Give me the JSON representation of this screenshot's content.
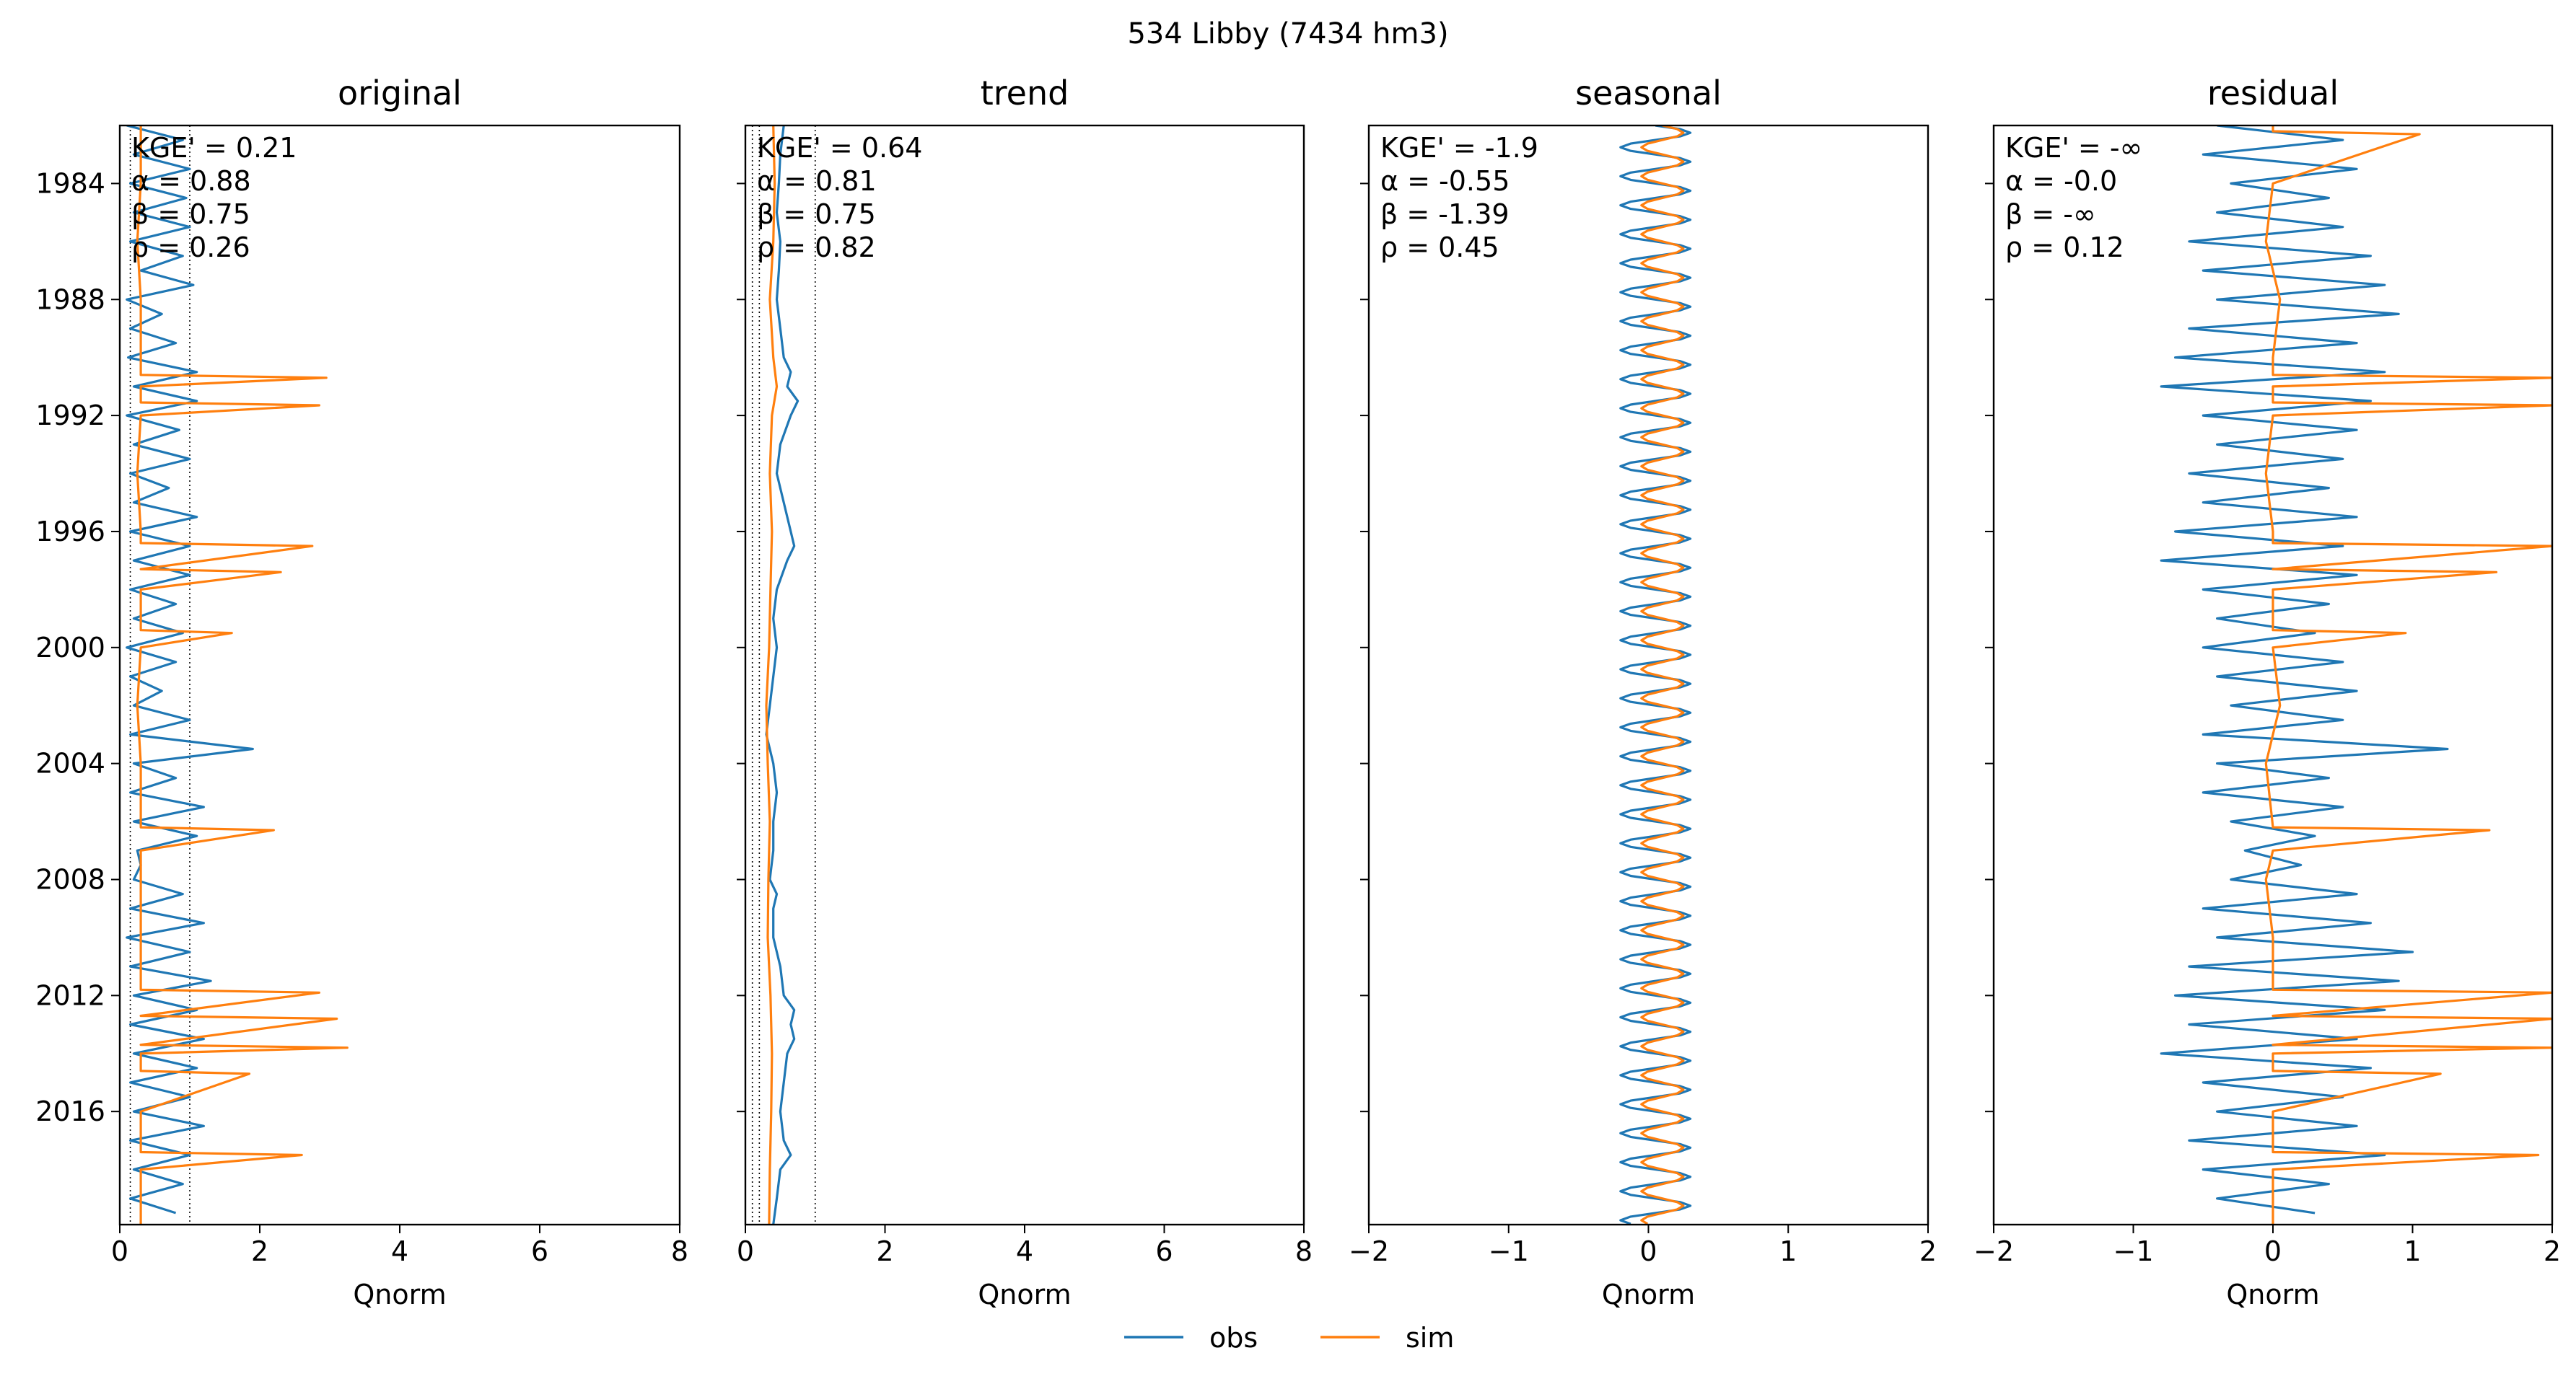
{
  "figure": {
    "suptitle": "534  Libby (7434 hm3)",
    "legend": {
      "placement": "bottom-center",
      "entries": [
        {
          "label": "obs",
          "color": "#1f77b4"
        },
        {
          "label": "sim",
          "color": "#ff7f0e"
        }
      ]
    }
  },
  "chart_data": [
    {
      "type": "line",
      "title": "original",
      "xlabel": "Qnorm",
      "ylabel": "",
      "orientation": "horizontal-time",
      "xlim": [
        0,
        8
      ],
      "xticks": [
        0,
        2,
        4,
        6,
        8
      ],
      "xtick_labels": [
        "0",
        "2",
        "4",
        "6",
        "8"
      ],
      "ylim": [
        1982.0,
        2019.9
      ],
      "yticks": [
        1984,
        1988,
        1992,
        1996,
        2000,
        2004,
        2008,
        2012,
        2016
      ],
      "ytick_labels": [
        "1984",
        "1988",
        "1992",
        "1996",
        "2000",
        "2004",
        "2008",
        "2012",
        "2016"
      ],
      "vlines": [
        0.15,
        1.0
      ],
      "metrics": [
        "KGE' = 0.21",
        "α = 0.88",
        "β = 0.75",
        "ρ = 0.26"
      ],
      "series": [
        {
          "name": "obs",
          "color": "#1f77b4",
          "time": [
            1982.0,
            1982.5,
            1983.0,
            1983.5,
            1984.0,
            1984.5,
            1985.0,
            1985.5,
            1986.0,
            1986.5,
            1987.0,
            1987.5,
            1988.0,
            1988.5,
            1989.0,
            1989.5,
            1990.0,
            1990.5,
            1991.0,
            1991.5,
            1992.0,
            1992.5,
            1993.0,
            1993.5,
            1994.0,
            1994.5,
            1995.0,
            1995.5,
            1996.0,
            1996.5,
            1997.0,
            1997.5,
            1998.0,
            1998.5,
            1999.0,
            1999.5,
            2000.0,
            2000.5,
            2001.0,
            2001.5,
            2002.0,
            2002.5,
            2003.0,
            2003.5,
            2004.0,
            2004.5,
            2005.0,
            2005.5,
            2006.0,
            2006.5,
            2007.0,
            2007.5,
            2008.0,
            2008.5,
            2009.0,
            2009.5,
            2010.0,
            2010.5,
            2011.0,
            2011.5,
            2012.0,
            2012.5,
            2013.0,
            2013.5,
            2014.0,
            2014.5,
            2015.0,
            2015.5,
            2016.0,
            2016.5,
            2017.0,
            2017.5,
            2018.0,
            2018.5,
            2019.0,
            2019.5
          ],
          "values": [
            0.1,
            0.9,
            0.2,
            1.0,
            0.15,
            0.95,
            0.2,
            1.0,
            0.15,
            0.9,
            0.3,
            1.05,
            0.1,
            0.6,
            0.15,
            0.8,
            0.12,
            1.1,
            0.2,
            1.1,
            0.1,
            0.85,
            0.2,
            1.0,
            0.15,
            0.7,
            0.2,
            1.1,
            0.15,
            1.0,
            0.2,
            1.0,
            0.15,
            0.8,
            0.2,
            0.9,
            0.1,
            0.8,
            0.15,
            0.6,
            0.2,
            1.0,
            0.15,
            1.9,
            0.2,
            0.8,
            0.15,
            1.2,
            0.2,
            1.1,
            0.25,
            0.3,
            0.2,
            0.9,
            0.15,
            1.2,
            0.1,
            1.0,
            0.15,
            1.3,
            0.2,
            1.1,
            0.15,
            1.2,
            0.2,
            1.1,
            0.15,
            1.0,
            0.2,
            1.2,
            0.15,
            1.0,
            0.2,
            0.9,
            0.15,
            0.8
          ]
        },
        {
          "name": "sim",
          "color": "#ff7f0e",
          "time": [
            1982.0,
            1984.0,
            1986.0,
            1988.0,
            1990.0,
            1990.6,
            1990.7,
            1991.0,
            1991.55,
            1991.65,
            1992.0,
            1994.0,
            1996.0,
            1996.4,
            1996.5,
            1997.3,
            1997.4,
            1998.0,
            1999.4,
            1999.5,
            2000.0,
            2002.0,
            2004.0,
            2006.2,
            2006.3,
            2007.0,
            2008.0,
            2010.0,
            2011.8,
            2011.9,
            2012.7,
            2012.8,
            2013.7,
            2013.8,
            2014.0,
            2014.6,
            2014.7,
            2016.0,
            2017.4,
            2017.5,
            2018.0,
            2019.9
          ],
          "values": [
            0.3,
            0.3,
            0.25,
            0.3,
            0.3,
            0.3,
            2.95,
            0.3,
            0.3,
            2.85,
            0.3,
            0.25,
            0.3,
            0.3,
            2.75,
            0.3,
            2.3,
            0.3,
            0.3,
            1.6,
            0.3,
            0.25,
            0.3,
            0.3,
            2.2,
            0.3,
            0.3,
            0.3,
            0.3,
            2.85,
            0.3,
            3.1,
            0.3,
            3.25,
            0.3,
            0.3,
            1.85,
            0.3,
            0.3,
            2.6,
            0.3,
            0.3
          ]
        }
      ]
    },
    {
      "type": "line",
      "title": "trend",
      "xlabel": "Qnorm",
      "ylabel": "",
      "orientation": "horizontal-time",
      "xlim": [
        0,
        8
      ],
      "xticks": [
        0,
        2,
        4,
        6,
        8
      ],
      "xtick_labels": [
        "0",
        "2",
        "4",
        "6",
        "8"
      ],
      "ylim": [
        1982.0,
        2019.9
      ],
      "yticks": [
        1984,
        1988,
        1992,
        1996,
        2000,
        2004,
        2008,
        2012,
        2016
      ],
      "vlines": [
        0.1,
        0.2,
        1.0
      ],
      "metrics": [
        "KGE' = 0.64",
        "α = 0.81",
        "β = 0.75",
        "ρ = 0.82"
      ],
      "series": [
        {
          "name": "obs",
          "color": "#1f77b4",
          "time": [
            1982.0,
            1983.0,
            1984.0,
            1985.0,
            1986.0,
            1987.0,
            1988.0,
            1989.0,
            1990.0,
            1990.5,
            1991.0,
            1991.5,
            1992.0,
            1993.0,
            1994.0,
            1995.0,
            1996.0,
            1996.5,
            1997.0,
            1998.0,
            1999.0,
            2000.0,
            2001.0,
            2002.0,
            2003.0,
            2004.0,
            2005.0,
            2006.0,
            2007.0,
            2008.0,
            2008.5,
            2009.0,
            2010.0,
            2011.0,
            2012.0,
            2012.5,
            2013.0,
            2013.5,
            2014.0,
            2015.0,
            2016.0,
            2017.0,
            2017.5,
            2018.0,
            2019.0,
            2019.9
          ],
          "values": [
            0.55,
            0.5,
            0.48,
            0.45,
            0.5,
            0.48,
            0.45,
            0.5,
            0.55,
            0.65,
            0.6,
            0.75,
            0.65,
            0.5,
            0.45,
            0.55,
            0.65,
            0.7,
            0.6,
            0.45,
            0.4,
            0.45,
            0.4,
            0.35,
            0.3,
            0.4,
            0.45,
            0.4,
            0.4,
            0.35,
            0.45,
            0.4,
            0.4,
            0.5,
            0.55,
            0.7,
            0.65,
            0.7,
            0.6,
            0.55,
            0.5,
            0.55,
            0.65,
            0.5,
            0.45,
            0.4
          ]
        },
        {
          "name": "sim",
          "color": "#ff7f0e",
          "time": [
            1982.0,
            1984.0,
            1986.0,
            1988.0,
            1990.0,
            1991.0,
            1992.0,
            1994.0,
            1996.0,
            1998.0,
            2000.0,
            2002.0,
            2004.0,
            2006.0,
            2008.0,
            2010.0,
            2012.0,
            2014.0,
            2016.0,
            2018.0,
            2019.9
          ],
          "values": [
            0.4,
            0.42,
            0.4,
            0.35,
            0.4,
            0.45,
            0.38,
            0.35,
            0.38,
            0.36,
            0.34,
            0.3,
            0.32,
            0.35,
            0.33,
            0.32,
            0.36,
            0.38,
            0.37,
            0.35,
            0.34
          ]
        }
      ]
    },
    {
      "type": "line",
      "title": "seasonal",
      "xlabel": "Qnorm",
      "ylabel": "",
      "orientation": "horizontal-time",
      "xlim": [
        -2,
        2
      ],
      "xticks": [
        -2,
        -1,
        0,
        1,
        2
      ],
      "xtick_labels": [
        "−2",
        "−1",
        "0",
        "1",
        "2"
      ],
      "ylim": [
        1982.0,
        2019.9
      ],
      "yticks": [
        1984,
        1988,
        1992,
        1996,
        2000,
        2004,
        2008,
        2012,
        2016
      ],
      "metrics": [
        "KGE' = -1.9",
        "α = -0.55",
        "β = -1.39",
        "ρ = 0.45"
      ],
      "series": [
        {
          "name": "obs",
          "color": "#1f77b4",
          "pattern": "annual-cycle",
          "period": 1.0,
          "low": -0.2,
          "high": 0.3,
          "start": 1982.0,
          "end": 2019.9
        },
        {
          "name": "sim",
          "color": "#ff7f0e",
          "pattern": "annual-cycle",
          "period": 1.0,
          "low": -0.05,
          "high": 0.25,
          "start": 1982.0,
          "end": 2019.9
        }
      ]
    },
    {
      "type": "line",
      "title": "residual",
      "xlabel": "Qnorm",
      "ylabel": "",
      "orientation": "horizontal-time",
      "xlim": [
        -2,
        2
      ],
      "xticks": [
        -2,
        -1,
        0,
        1,
        2
      ],
      "xtick_labels": [
        "−2",
        "−1",
        "0",
        "1",
        "2"
      ],
      "ylim": [
        1982.0,
        2019.9
      ],
      "yticks": [
        1984,
        1988,
        1992,
        1996,
        2000,
        2004,
        2008,
        2012,
        2016
      ],
      "metrics": [
        "KGE' = -∞",
        "α = -0.0",
        "β = -∞",
        "ρ = 0.12"
      ],
      "series": [
        {
          "name": "obs",
          "color": "#1f77b4",
          "time": [
            1982.0,
            1982.5,
            1983.0,
            1983.5,
            1984.0,
            1984.5,
            1985.0,
            1985.5,
            1986.0,
            1986.5,
            1987.0,
            1987.5,
            1988.0,
            1988.5,
            1989.0,
            1989.5,
            1990.0,
            1990.5,
            1991.0,
            1991.5,
            1992.0,
            1992.5,
            1993.0,
            1993.5,
            1994.0,
            1994.5,
            1995.0,
            1995.5,
            1996.0,
            1996.5,
            1997.0,
            1997.5,
            1998.0,
            1998.5,
            1999.0,
            1999.5,
            2000.0,
            2000.5,
            2001.0,
            2001.5,
            2002.0,
            2002.5,
            2003.0,
            2003.5,
            2004.0,
            2004.5,
            2005.0,
            2005.5,
            2006.0,
            2006.5,
            2007.0,
            2007.5,
            2008.0,
            2008.5,
            2009.0,
            2009.5,
            2010.0,
            2010.5,
            2011.0,
            2011.5,
            2012.0,
            2012.5,
            2013.0,
            2013.5,
            2014.0,
            2014.5,
            2015.0,
            2015.5,
            2016.0,
            2016.5,
            2017.0,
            2017.5,
            2018.0,
            2018.5,
            2019.0,
            2019.5
          ],
          "values": [
            -0.4,
            0.5,
            -0.5,
            0.6,
            -0.3,
            0.4,
            -0.4,
            0.5,
            -0.6,
            0.7,
            -0.5,
            0.8,
            -0.4,
            0.9,
            -0.6,
            0.6,
            -0.7,
            0.8,
            -0.8,
            0.7,
            -0.5,
            0.6,
            -0.4,
            0.5,
            -0.6,
            0.4,
            -0.5,
            0.6,
            -0.7,
            0.5,
            -0.8,
            0.6,
            -0.5,
            0.4,
            -0.4,
            0.3,
            -0.5,
            0.5,
            -0.4,
            0.6,
            -0.3,
            0.5,
            -0.5,
            1.25,
            -0.4,
            0.4,
            -0.5,
            0.5,
            -0.3,
            0.3,
            -0.2,
            0.2,
            -0.3,
            0.6,
            -0.5,
            0.7,
            -0.4,
            1.0,
            -0.6,
            0.9,
            -0.7,
            0.8,
            -0.6,
            0.6,
            -0.8,
            0.7,
            -0.5,
            0.5,
            -0.4,
            0.6,
            -0.6,
            0.8,
            -0.5,
            0.4,
            -0.4,
            0.3
          ]
        },
        {
          "name": "sim",
          "color": "#ff7f0e",
          "time": [
            1982.0,
            1982.2,
            1982.3,
            1984.0,
            1986.0,
            1988.0,
            1990.0,
            1990.6,
            1990.7,
            1991.0,
            1991.55,
            1991.65,
            1992.0,
            1994.0,
            1996.0,
            1996.4,
            1996.5,
            1997.3,
            1997.4,
            1998.0,
            1999.4,
            1999.5,
            2000.0,
            2002.0,
            2004.0,
            2006.2,
            2006.3,
            2007.0,
            2008.0,
            2010.0,
            2011.8,
            2011.9,
            2012.7,
            2012.8,
            2013.7,
            2013.8,
            2014.0,
            2014.6,
            2014.7,
            2016.0,
            2017.4,
            2017.5,
            2018.0,
            2019.9
          ],
          "values": [
            0.0,
            0.0,
            1.05,
            0.0,
            -0.05,
            0.05,
            0.0,
            0.0,
            2.0,
            0.0,
            0.0,
            2.0,
            0.0,
            -0.05,
            0.0,
            0.0,
            2.0,
            0.0,
            1.6,
            0.0,
            0.0,
            0.95,
            0.0,
            0.05,
            -0.05,
            0.0,
            1.55,
            0.0,
            -0.05,
            0.0,
            0.0,
            2.0,
            0.0,
            2.0,
            0.0,
            2.0,
            0.0,
            0.0,
            1.2,
            0.0,
            0.0,
            1.9,
            0.0,
            0.0
          ]
        }
      ]
    }
  ]
}
